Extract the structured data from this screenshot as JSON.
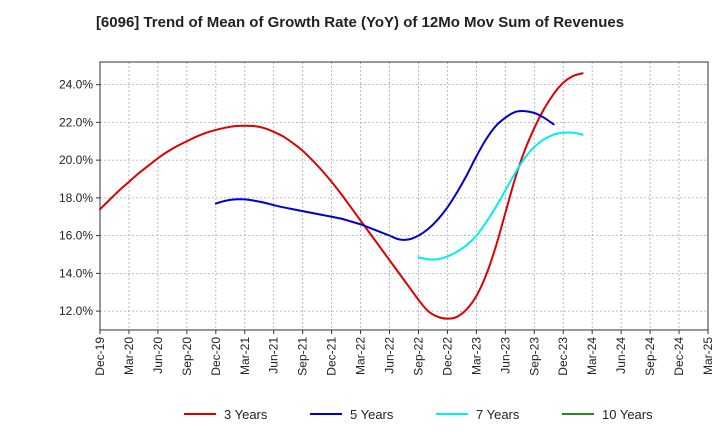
{
  "chart_data": {
    "type": "line",
    "title": "[6096]  Trend of Mean of Growth Rate (YoY) of 12Mo Mov Sum of Revenues",
    "xlabel": "",
    "ylabel": "",
    "ylim": [
      11.0,
      25.2
    ],
    "y_ticks": [
      12.0,
      14.0,
      16.0,
      18.0,
      20.0,
      22.0,
      24.0
    ],
    "y_tick_labels": [
      "12.0%",
      "14.0%",
      "16.0%",
      "18.0%",
      "20.0%",
      "22.0%",
      "24.0%"
    ],
    "x_tick_labels": [
      "Dec-19",
      "Mar-20",
      "Jun-20",
      "Sep-20",
      "Dec-20",
      "Mar-21",
      "Jun-21",
      "Sep-21",
      "Dec-21",
      "Mar-22",
      "Jun-22",
      "Sep-22",
      "Dec-22",
      "Mar-23",
      "Jun-23",
      "Sep-23",
      "Dec-23",
      "Mar-24",
      "Jun-24",
      "Sep-24",
      "Dec-24",
      "Mar-25"
    ],
    "grid": true,
    "legend_position": "bottom",
    "series": [
      {
        "name": "3 Years",
        "color": "#dd0000",
        "start_index": 0,
        "values": [
          17.4,
          17.9,
          18.4,
          18.85,
          19.3,
          19.7,
          20.1,
          20.45,
          20.75,
          21.0,
          21.25,
          21.45,
          21.6,
          21.72,
          21.8,
          21.82,
          21.8,
          21.7,
          21.5,
          21.25,
          20.9,
          20.5,
          20.0,
          19.45,
          18.85,
          18.2,
          17.5,
          16.8,
          16.1,
          15.4,
          14.7,
          14.0,
          13.3,
          12.6,
          12.0,
          11.7,
          11.6,
          11.7,
          12.1,
          12.8,
          13.9,
          15.4,
          17.2,
          19.0,
          20.5,
          21.7,
          22.7,
          23.5,
          24.1,
          24.45,
          24.6
        ]
      },
      {
        "name": "5 Years",
        "color": "#0000cc",
        "start_index": 12,
        "values": [
          17.7,
          17.85,
          17.92,
          17.92,
          17.85,
          17.75,
          17.62,
          17.5,
          17.4,
          17.3,
          17.2,
          17.1,
          17.0,
          16.9,
          16.75,
          16.6,
          16.4,
          16.2,
          16.0,
          15.8,
          15.8,
          16.0,
          16.35,
          16.85,
          17.5,
          18.3,
          19.2,
          20.2,
          21.1,
          21.8,
          22.25,
          22.55,
          22.6,
          22.5,
          22.25,
          21.9
        ]
      },
      {
        "name": "7 Years",
        "color": "#00eeee",
        "start_index": 33,
        "values": [
          14.85,
          14.75,
          14.75,
          14.9,
          15.15,
          15.5,
          16.0,
          16.7,
          17.5,
          18.4,
          19.3,
          20.1,
          20.7,
          21.1,
          21.35,
          21.45,
          21.45,
          21.35
        ]
      },
      {
        "name": "10 Years",
        "color": "#228b22",
        "start_index": 0,
        "values": []
      }
    ]
  }
}
